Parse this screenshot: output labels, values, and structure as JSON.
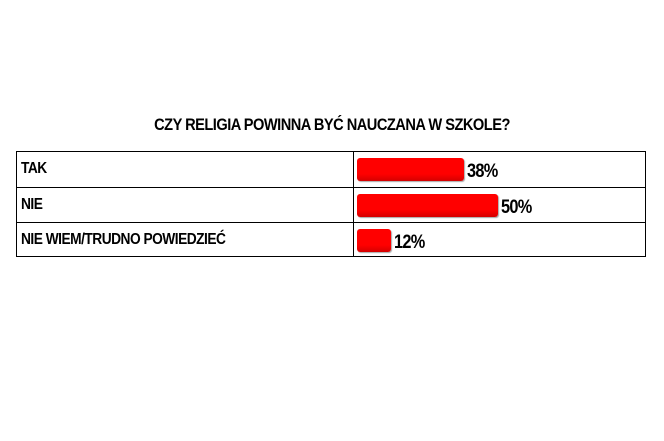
{
  "title": "CZY RELIGIA POWINNA BYĆ NAUCZANA W SZKOLE?",
  "colors": {
    "bar": "#ff0000",
    "bar_dark": "#d40000",
    "border": "#000000",
    "background": "#ffffff"
  },
  "rows": [
    {
      "label": "TAK",
      "value_label": "38%"
    },
    {
      "label": "NIE",
      "value_label": "50%"
    },
    {
      "label": "NIE WIEM/TRUDNO POWIEDZIEĆ",
      "value_label": "12%"
    }
  ],
  "chart_data": {
    "type": "bar",
    "title": "CZY RELIGIA POWINNA BYĆ NAUCZANA W SZKOLE?",
    "categories": [
      "TAK",
      "NIE",
      "NIE WIEM/TRUDNO POWIEDZIEĆ"
    ],
    "values": [
      38,
      50,
      12
    ],
    "unit": "%",
    "orientation": "horizontal",
    "ylim": [
      0,
      50
    ],
    "grid": false,
    "legend": "none"
  }
}
